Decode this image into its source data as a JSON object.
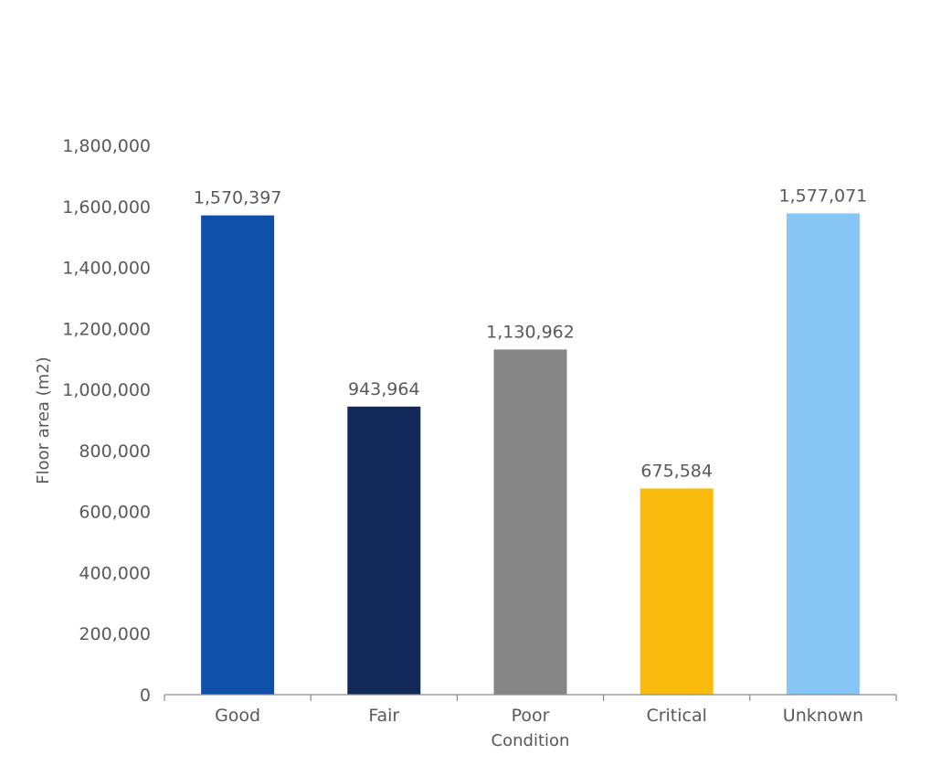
{
  "chart_data": {
    "type": "bar",
    "title": "",
    "xlabel": "Condition",
    "ylabel": "Floor area (m2)",
    "ylim": [
      0,
      1800000
    ],
    "ytick_step": 200000,
    "ytick_labels": [
      "0",
      "200,000",
      "400,000",
      "600,000",
      "800,000",
      "1,000,000",
      "1,200,000",
      "1,400,000",
      "1,600,000",
      "1,800,000"
    ],
    "grid": false,
    "legend": "none",
    "categories": [
      "Good",
      "Fair",
      "Poor",
      "Critical",
      "Unknown"
    ],
    "values": [
      1570397,
      943964,
      1130962,
      675584,
      1577071
    ],
    "data_labels": [
      "1,570,397",
      "943,964",
      "1,130,962",
      "675,584",
      "1,577,071"
    ],
    "colors": [
      "#0f4fa8",
      "#122858",
      "#858585",
      "#fbbb0c",
      "#86c5f4"
    ]
  }
}
